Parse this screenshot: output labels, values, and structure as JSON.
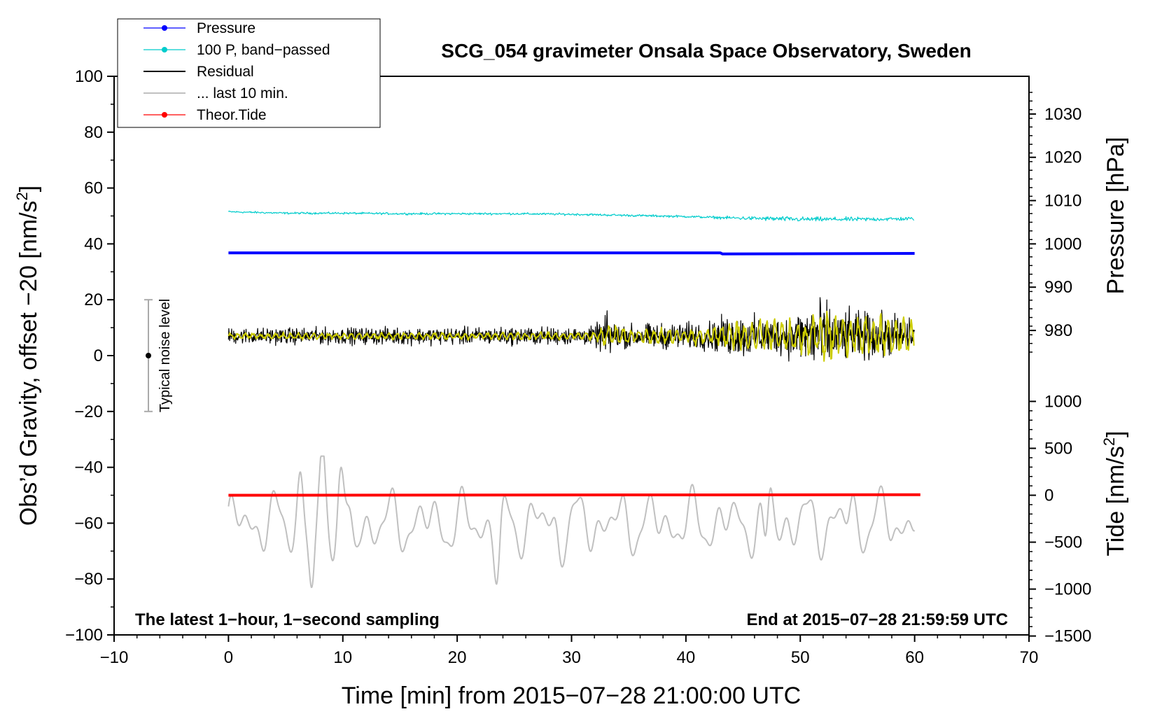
{
  "chart_data": {
    "type": "line",
    "title": "SCG_054 gravimeter Onsala Space Observatory, Sweden",
    "xlabel": "Time [min] from 2015−07−28 21:00:00 UTC",
    "ylabel_left": "Obs’d Gravity, offset −20 [nm/s",
    "ylabel_left_sup": "2",
    "ylabel_left_close": "]",
    "ylabel_right_pressure": "Pressure [hPa]",
    "ylabel_right_tide": "Tide [nm/s",
    "ylabel_right_tide_sup": "2",
    "ylabel_right_tide_close": "]",
    "xlim": [
      -10,
      70
    ],
    "ylim": [
      -100,
      100
    ],
    "x_ticks": [
      -10,
      0,
      10,
      20,
      30,
      40,
      50,
      60,
      70
    ],
    "x_tick_labels": [
      "−10",
      "0",
      "10",
      "20",
      "30",
      "40",
      "50",
      "60",
      "70"
    ],
    "y_ticks": [
      100,
      80,
      60,
      40,
      20,
      0,
      -20,
      -40,
      -60,
      -80,
      -100
    ],
    "y_tick_labels": [
      "100",
      "80",
      "60",
      "40",
      "20",
      "0",
      "−20",
      "−40",
      "−60",
      "−80",
      "−100"
    ],
    "pressure_axis": {
      "ticks": [
        1030,
        1020,
        1010,
        1000,
        990,
        980
      ],
      "tick_labels": [
        "1030",
        "1020",
        "1010",
        "1000",
        "990",
        "980"
      ],
      "gravity_at_1000": 40,
      "gravity_per_hpa": 1.55
    },
    "tide_axis": {
      "ticks": [
        1000,
        500,
        0,
        -500,
        -1000,
        -1500
      ],
      "tick_labels": [
        "1000",
        "500",
        "0",
        "−500",
        "−1000",
        "−1500"
      ],
      "gravity_at_0": -50,
      "gravity_per_nms2": 0.0336
    },
    "legend": {
      "position": "top-left",
      "entries": [
        {
          "label": "Pressure",
          "color": "#0000ff",
          "marker": true
        },
        {
          "label": "100 P, band−passed",
          "color": "#00cccc",
          "marker": true
        },
        {
          "label": "Residual",
          "color": "#000000",
          "marker": false
        },
        {
          "label": "... last 10 min.",
          "color": "#c0c0c0",
          "marker": false
        },
        {
          "label": "Theor.Tide",
          "color": "#ff0000",
          "marker": true
        }
      ]
    },
    "noise_bar": {
      "label": "Typical noise level",
      "x": -7,
      "center": 0,
      "half_range": 20
    },
    "annotations": {
      "bottom_left": "The latest 1−hour, 1−second sampling",
      "bottom_right": "End at 2015−07−28 21:59:59 UTC"
    },
    "series": [
      {
        "name": "Pressure",
        "color": "#0000ff",
        "line_width": 4,
        "x": [
          0,
          43,
          43.2,
          60
        ],
        "y": [
          36.8,
          36.8,
          36.4,
          36.6
        ]
      },
      {
        "name": "100 P, band-passed",
        "color": "#00cccc",
        "line_width": 1.2,
        "x": [
          0,
          5,
          10,
          15,
          20,
          25,
          30,
          35,
          40,
          43,
          45,
          50,
          55,
          60
        ],
        "y": [
          51.5,
          51,
          51,
          50.8,
          50.8,
          50.8,
          50.6,
          50.2,
          49.8,
          49.4,
          49.2,
          48.8,
          48.8,
          49.0
        ],
        "noise_amplitude": [
          [
            0,
            0.5
          ],
          [
            42,
            0.6
          ],
          [
            48,
            1.3
          ],
          [
            60,
            1.0
          ]
        ]
      },
      {
        "name": "Residual",
        "color": "#000000",
        "line_width": 1.2,
        "x": [
          0,
          60
        ],
        "baseline": 7,
        "noise_amplitude": [
          [
            0,
            4
          ],
          [
            32,
            4.5
          ],
          [
            33,
            12
          ],
          [
            34,
            6
          ],
          [
            36,
            6
          ],
          [
            42,
            7
          ],
          [
            44,
            11
          ],
          [
            48,
            9
          ],
          [
            50,
            13
          ],
          [
            51.5,
            20
          ],
          [
            53,
            13
          ],
          [
            60,
            10
          ]
        ]
      },
      {
        "name": "Residual (smoothed)",
        "color": "#cccc00",
        "line_width": 2,
        "x": [
          0,
          60
        ],
        "baseline": 7,
        "noise_amplitude": [
          [
            0,
            1.3
          ],
          [
            32,
            1.6
          ],
          [
            33,
            5
          ],
          [
            36,
            3
          ],
          [
            42,
            4
          ],
          [
            44,
            6
          ],
          [
            50,
            7
          ],
          [
            52,
            10
          ],
          [
            60,
            7
          ]
        ]
      },
      {
        "name": "... last 10 min.",
        "color": "#c0c0c0",
        "line_width": 2,
        "x": [
          0,
          60
        ],
        "baseline": -60,
        "extremes": [
          [
            7.3,
            -87
          ],
          [
            8.2,
            -37
          ],
          [
            9.8,
            -43
          ],
          [
            6.3,
            -45
          ],
          [
            11,
            -70
          ],
          [
            15.5,
            -60
          ],
          [
            23.5,
            -78
          ],
          [
            29,
            -66
          ],
          [
            31.5,
            -60
          ],
          [
            47,
            -77
          ],
          [
            47.3,
            -45
          ],
          [
            54.5,
            -55
          ],
          [
            57.5,
            -57
          ]
        ]
      },
      {
        "name": "Theor.Tide",
        "color": "#ff0000",
        "line_width": 4,
        "x": [
          0,
          60.5
        ],
        "y": [
          -50.0,
          -49.8
        ]
      }
    ]
  }
}
